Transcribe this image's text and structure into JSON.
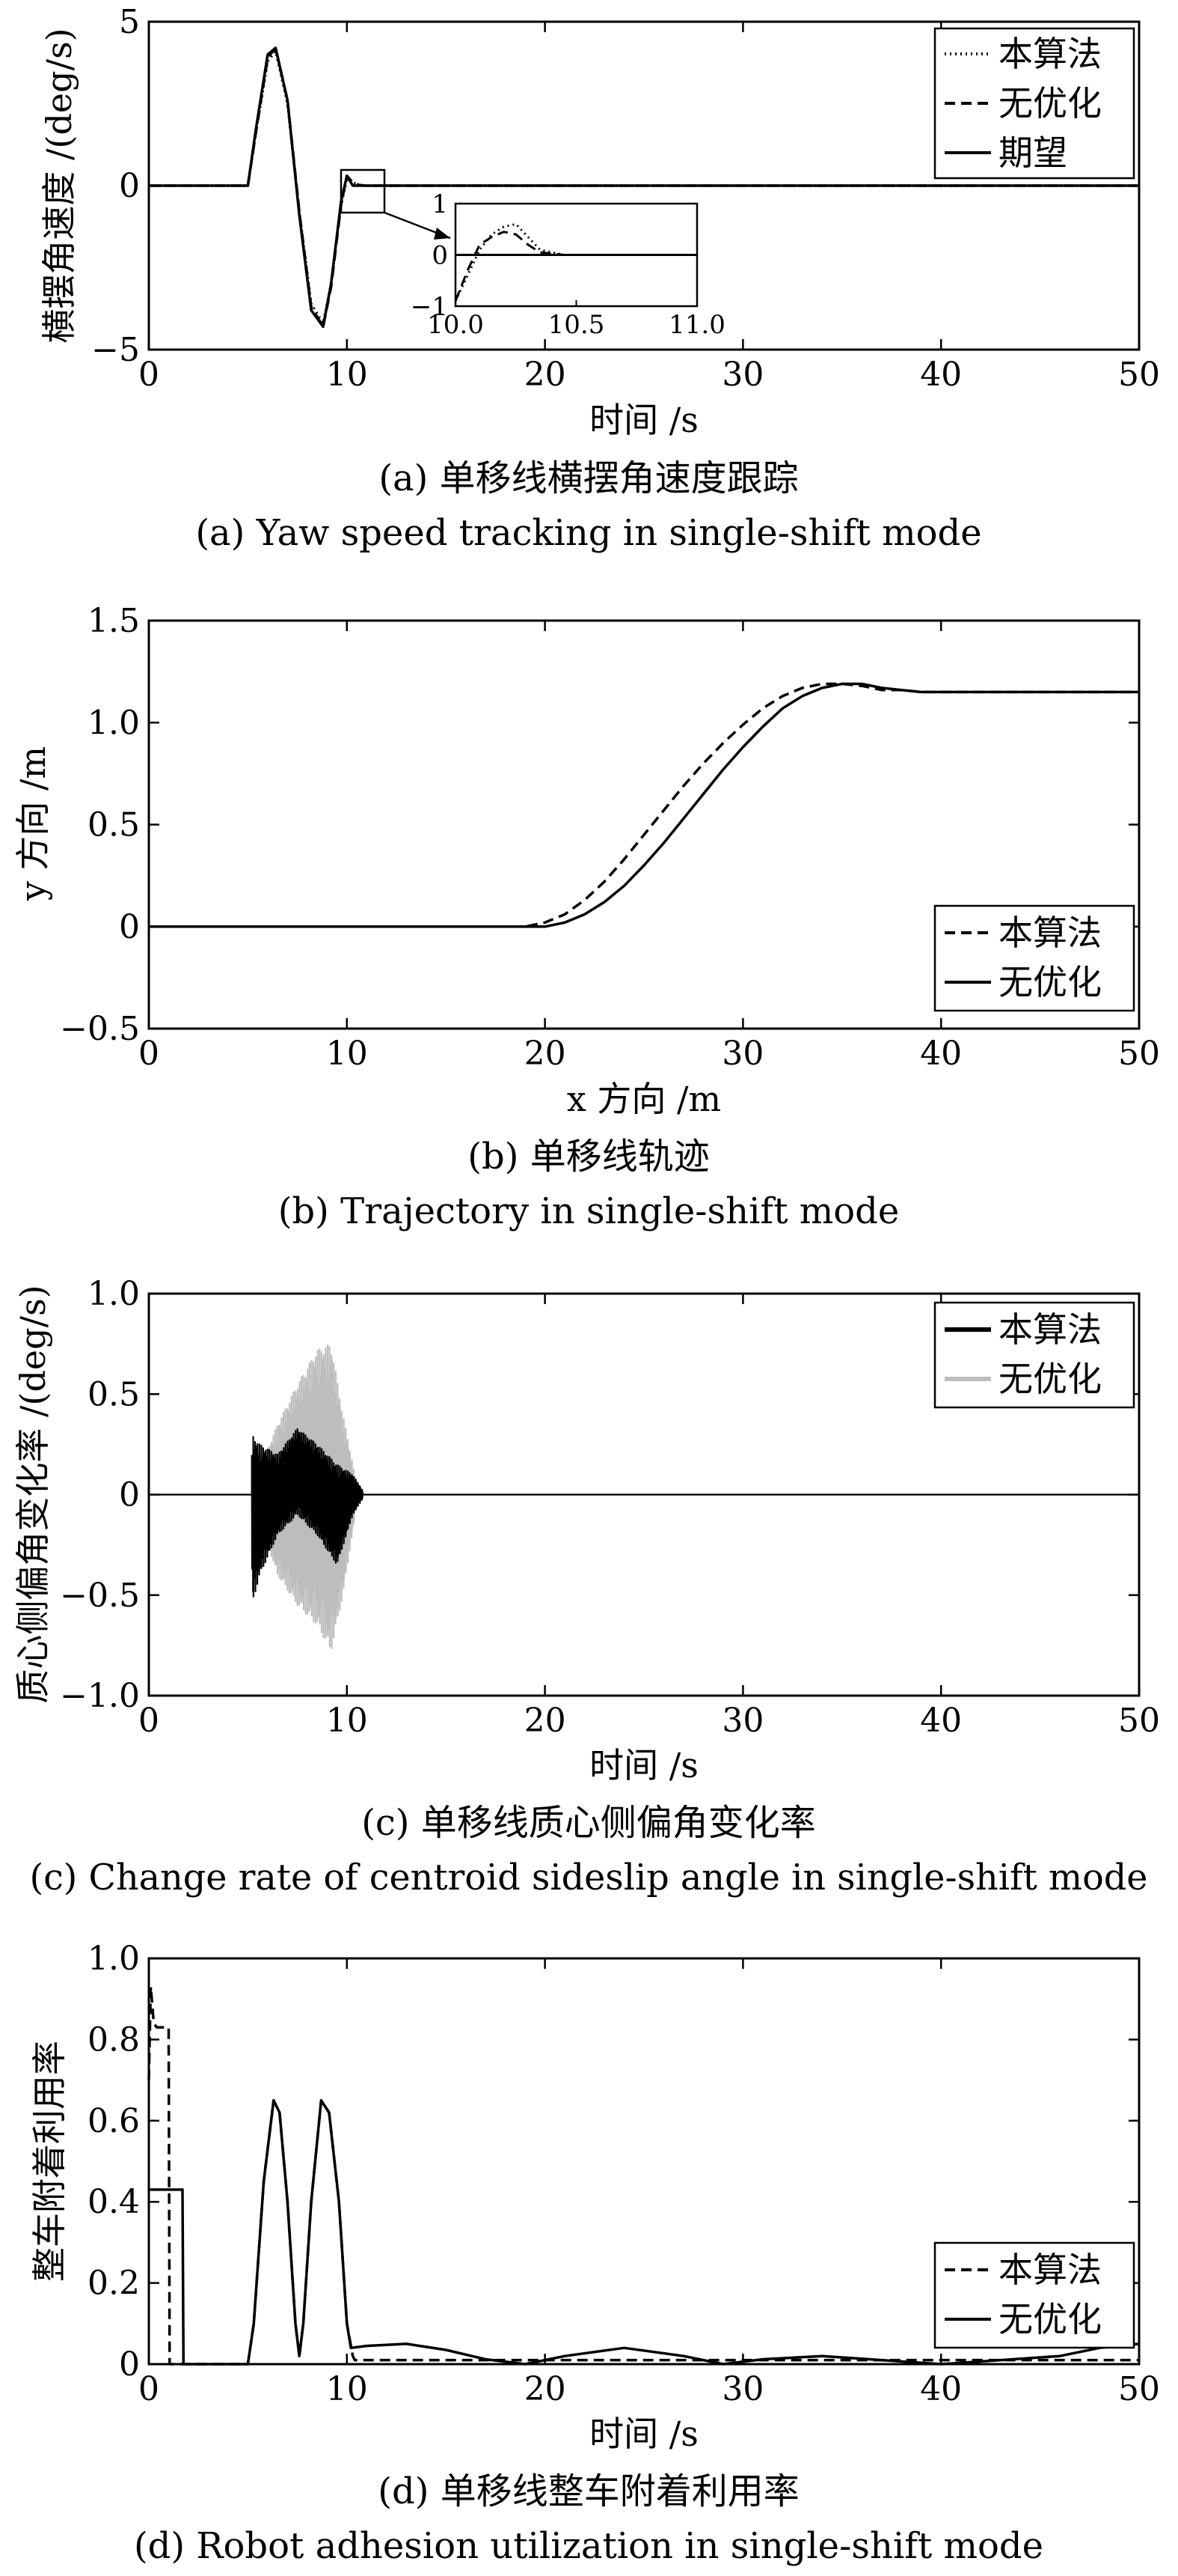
{
  "chart_data": [
    {
      "type": "line",
      "caption_zh": "(a) 单移线横摆角速度跟踪",
      "caption_en": "(a) Yaw speed tracking in single-shift mode",
      "xlabel": "时间 /s",
      "ylabel": "横摆角速度 /(deg/s)",
      "xlim": [
        0,
        50
      ],
      "ylim": [
        -5,
        5
      ],
      "xticks": [
        "0",
        "10",
        "20",
        "30",
        "40",
        "50"
      ],
      "yticks": [
        "−5",
        "0",
        "5"
      ],
      "legend_position": "top-right",
      "series": [
        {
          "name": "本算法",
          "style": "dotted",
          "x": [
            0,
            5,
            5.4,
            6,
            6.4,
            7,
            7.6,
            8.2,
            8.8,
            9.2,
            9.7,
            10.0,
            10.3,
            10.6,
            11,
            50
          ],
          "y": [
            0,
            0,
            1.6,
            3.8,
            4.1,
            2.5,
            -0.8,
            -3.6,
            -4.2,
            -3.0,
            -0.6,
            0.2,
            0.1,
            0.02,
            0,
            0
          ]
        },
        {
          "name": "无优化",
          "style": "dashed",
          "x": [
            0,
            5,
            5.4,
            6,
            6.4,
            7,
            7.6,
            8.2,
            8.8,
            9.2,
            9.7,
            10.0,
            10.3,
            10.6,
            11,
            50
          ],
          "y": [
            0,
            0,
            1.6,
            3.9,
            4.2,
            2.6,
            -0.8,
            -3.7,
            -4.3,
            -3.1,
            -0.6,
            0.3,
            0.1,
            0.02,
            0,
            0
          ]
        },
        {
          "name": "期望",
          "style": "solid",
          "x": [
            0,
            5,
            5.4,
            6,
            6.4,
            7,
            7.6,
            8.2,
            8.8,
            9.2,
            9.7,
            10.0,
            10.3,
            10.6,
            11,
            50
          ],
          "y": [
            0,
            0,
            1.7,
            4.0,
            4.2,
            2.6,
            -0.9,
            -3.8,
            -4.3,
            -3.0,
            -0.5,
            0.3,
            0,
            0,
            0,
            0
          ]
        }
      ],
      "inset": {
        "xlim": [
          10.0,
          11.0
        ],
        "ylim": [
          -1,
          1
        ],
        "xticks": [
          "10.0",
          "10.5",
          "11.0"
        ],
        "yticks": [
          "1",
          "0",
          "−1"
        ],
        "series": [
          {
            "name": "本算法",
            "style": "dotted",
            "x": [
              10.0,
              10.05,
              10.1,
              10.15,
              10.2,
              10.25,
              10.3,
              10.35,
              10.45,
              10.6,
              10.8,
              11.0
            ],
            "y": [
              -0.9,
              -0.4,
              0.1,
              0.4,
              0.55,
              0.6,
              0.35,
              0.1,
              0.0,
              0.0,
              0.0,
              0.0
            ]
          },
          {
            "name": "无优化",
            "style": "dashed",
            "x": [
              10.0,
              10.05,
              10.1,
              10.15,
              10.2,
              10.25,
              10.3,
              10.35,
              10.45,
              10.6,
              10.8,
              11.0
            ],
            "y": [
              -0.9,
              -0.3,
              0.2,
              0.35,
              0.45,
              0.4,
              0.2,
              0.05,
              0.0,
              0.0,
              0.0,
              0.0
            ]
          },
          {
            "name": "期望",
            "style": "solid",
            "x": [
              10.0,
              11.0
            ],
            "y": [
              0,
              0
            ]
          }
        ]
      }
    },
    {
      "type": "line",
      "caption_zh": "(b) 单移线轨迹",
      "caption_en": "(b) Trajectory in single-shift mode",
      "xlabel": "x 方向 /m",
      "ylabel": "y 方向 /m",
      "xlim": [
        0,
        50
      ],
      "ylim": [
        -0.5,
        1.5
      ],
      "xticks": [
        "0",
        "10",
        "20",
        "30",
        "40",
        "50"
      ],
      "yticks": [
        "−0.5",
        "0",
        "0.5",
        "1.0",
        "1.5"
      ],
      "legend_position": "lower-right",
      "series": [
        {
          "name": "本算法",
          "style": "dashed",
          "x": [
            0,
            19,
            20,
            21,
            22,
            23,
            24,
            25,
            26,
            27,
            28,
            29,
            30,
            31,
            32,
            33,
            34,
            35,
            36,
            37,
            38,
            39,
            40,
            50
          ],
          "y": [
            0,
            0,
            0.02,
            0.06,
            0.13,
            0.22,
            0.33,
            0.45,
            0.57,
            0.69,
            0.8,
            0.9,
            0.99,
            1.07,
            1.13,
            1.17,
            1.19,
            1.19,
            1.18,
            1.16,
            1.16,
            1.15,
            1.15,
            1.15
          ]
        },
        {
          "name": "无优化",
          "style": "solid",
          "x": [
            0,
            19,
            20,
            21,
            22,
            23,
            24,
            25,
            26,
            27,
            28,
            29,
            30,
            31,
            32,
            33,
            34,
            35,
            36,
            37,
            38,
            39,
            40,
            50
          ],
          "y": [
            0,
            0,
            0.0,
            0.02,
            0.06,
            0.12,
            0.2,
            0.3,
            0.41,
            0.53,
            0.65,
            0.77,
            0.88,
            0.98,
            1.07,
            1.13,
            1.17,
            1.19,
            1.19,
            1.17,
            1.16,
            1.15,
            1.15,
            1.15
          ]
        }
      ]
    },
    {
      "type": "line",
      "caption_zh": "(c) 单移线质心侧偏角变化率",
      "caption_en": "(c) Change rate of centroid sideslip angle in single-shift mode",
      "xlabel": "时间 /s",
      "ylabel": "质心侧偏角变化率 /(deg/s)",
      "xlim": [
        0,
        50
      ],
      "ylim": [
        -1.0,
        1.0
      ],
      "xticks": [
        "0",
        "10",
        "20",
        "30",
        "40",
        "50"
      ],
      "yticks": [
        "−1.0",
        "−0.5",
        "0",
        "0.5",
        "1.0"
      ],
      "legend_position": "top-right",
      "series": [
        {
          "name": "本算法",
          "style": "solid-black",
          "t_start": 5.2,
          "t_end": 10.8,
          "envelope": [
            [
              5.2,
              0.3
            ],
            [
              5.6,
              0.25
            ],
            [
              6.5,
              0.2
            ],
            [
              7.5,
              0.33
            ],
            [
              8.5,
              0.25
            ],
            [
              9.5,
              0.15
            ],
            [
              10.3,
              0.1
            ],
            [
              10.8,
              0.02
            ]
          ],
          "lower_envelope": [
            [
              5.2,
              -0.55
            ],
            [
              5.6,
              -0.4
            ],
            [
              6.5,
              -0.2
            ],
            [
              7.5,
              -0.1
            ],
            [
              8.5,
              -0.2
            ],
            [
              9.5,
              -0.35
            ],
            [
              10.3,
              -0.1
            ],
            [
              10.8,
              -0.02
            ]
          ]
        },
        {
          "name": "无优化",
          "style": "solid-gray",
          "t_start": 5.5,
          "t_end": 10.5,
          "envelope": [
            [
              5.5,
              0.1
            ],
            [
              6.5,
              0.35
            ],
            [
              7.5,
              0.55
            ],
            [
              8.5,
              0.72
            ],
            [
              9.2,
              0.75
            ],
            [
              9.8,
              0.4
            ],
            [
              10.5,
              0.05
            ]
          ],
          "lower_envelope": [
            [
              5.5,
              -0.1
            ],
            [
              6.5,
              -0.4
            ],
            [
              7.5,
              -0.55
            ],
            [
              8.5,
              -0.65
            ],
            [
              9.2,
              -0.78
            ],
            [
              9.8,
              -0.5
            ],
            [
              10.5,
              -0.05
            ]
          ]
        }
      ]
    },
    {
      "type": "line",
      "caption_zh": "(d) 单移线整车附着利用率",
      "caption_en": "(d) Robot adhesion utilization in single-shift mode",
      "xlabel": "时间 /s",
      "ylabel": "整车附着利用率",
      "xlim": [
        0,
        50
      ],
      "ylim": [
        0,
        1.0
      ],
      "xticks": [
        "0",
        "10",
        "20",
        "30",
        "40",
        "50"
      ],
      "yticks": [
        "0",
        "0.2",
        "0.4",
        "0.6",
        "0.8",
        "1.0"
      ],
      "legend_position": "lower-right",
      "series": [
        {
          "name": "本算法",
          "style": "dashed",
          "x": [
            0,
            0.1,
            0.25,
            0.4,
            1.0,
            1.05,
            5,
            5.3,
            5.8,
            6.3,
            6.6,
            7.0,
            7.4,
            7.6,
            7.8,
            8.2,
            8.7,
            9.1,
            9.6,
            10.0,
            10.3,
            10.4,
            50
          ],
          "y": [
            0.7,
            0.93,
            0.84,
            0.83,
            0.83,
            0.0,
            0.0,
            0.1,
            0.45,
            0.65,
            0.62,
            0.4,
            0.1,
            0.02,
            0.1,
            0.4,
            0.65,
            0.62,
            0.4,
            0.1,
            0.02,
            0.01,
            0.01
          ]
        },
        {
          "name": "无优化",
          "style": "solid",
          "x": [
            0,
            1.7,
            1.75,
            5,
            5.3,
            5.8,
            6.3,
            6.6,
            7.0,
            7.4,
            7.6,
            7.8,
            8.2,
            8.7,
            9.1,
            9.6,
            10.0,
            10.2,
            11,
            13,
            15,
            17,
            19,
            21,
            24,
            27,
            29,
            31,
            34,
            37,
            40,
            43,
            46,
            48,
            50
          ],
          "y": [
            0.43,
            0.43,
            0.0,
            0.0,
            0.1,
            0.45,
            0.65,
            0.62,
            0.4,
            0.1,
            0.02,
            0.1,
            0.4,
            0.65,
            0.62,
            0.4,
            0.1,
            0.04,
            0.045,
            0.05,
            0.035,
            0.012,
            0.0,
            0.02,
            0.04,
            0.02,
            0.0,
            0.012,
            0.02,
            0.01,
            0.0,
            0.01,
            0.02,
            0.04,
            0.05
          ]
        }
      ]
    }
  ]
}
